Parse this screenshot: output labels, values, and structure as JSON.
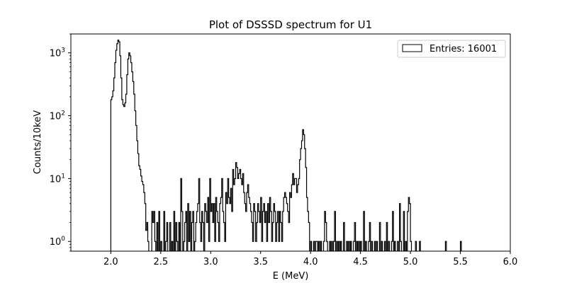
{
  "chart_data": {
    "type": "histogram-step",
    "title": "Plot of DSSSD spectrum for U1",
    "xlabel": "E (MeV)",
    "ylabel": "Counts/10keV",
    "xlim": [
      1.6,
      6.0
    ],
    "ylim": [
      0.7,
      2000
    ],
    "yscale": "log",
    "grid": false,
    "legend": {
      "placement": "top-right",
      "label": "Entries: 16001"
    },
    "xticks": [
      {
        "value": 2.0,
        "label": "2.0"
      },
      {
        "value": 2.5,
        "label": "2.5"
      },
      {
        "value": 3.0,
        "label": "3.0"
      },
      {
        "value": 3.5,
        "label": "3.5"
      },
      {
        "value": 4.0,
        "label": "4.0"
      },
      {
        "value": 4.5,
        "label": "4.5"
      },
      {
        "value": 5.0,
        "label": "5.0"
      },
      {
        "value": 5.5,
        "label": "5.5"
      },
      {
        "value": 6.0,
        "label": "6.0"
      }
    ],
    "yticks": [
      {
        "value": 1,
        "base": "10",
        "exp": "0"
      },
      {
        "value": 10,
        "base": "10",
        "exp": "1"
      },
      {
        "value": 100,
        "base": "10",
        "exp": "2"
      },
      {
        "value": 1000,
        "base": "10",
        "exp": "3"
      }
    ],
    "bin_width": 0.01,
    "bins_start": 2.0,
    "counts": [
      180,
      200,
      250,
      400,
      700,
      1100,
      1400,
      1600,
      1500,
      900,
      400,
      180,
      150,
      140,
      160,
      220,
      450,
      800,
      1000,
      900,
      700,
      500,
      350,
      220,
      120,
      70,
      40,
      25,
      16,
      14,
      11,
      9,
      8,
      6,
      4,
      1.5,
      2,
      1,
      0,
      0,
      0,
      3,
      2,
      3,
      1,
      0,
      2,
      0,
      3,
      0,
      1,
      0,
      0,
      3,
      0,
      1,
      2,
      0,
      0,
      2,
      0,
      1,
      0,
      3,
      0,
      2,
      1,
      0,
      2,
      0,
      10,
      3,
      0,
      1,
      2,
      3,
      0,
      4,
      1,
      3,
      0,
      2,
      3,
      0,
      1,
      2,
      3,
      4,
      10,
      2,
      1,
      3,
      2,
      0,
      4,
      3,
      2,
      5,
      1,
      10,
      3,
      4,
      2,
      4,
      1,
      5,
      3,
      2,
      1,
      4,
      5,
      10,
      3,
      2,
      1,
      6,
      4,
      10,
      5,
      4,
      7,
      3,
      14,
      8,
      10,
      18,
      15,
      10,
      12,
      14,
      10,
      8,
      12,
      6,
      4,
      3,
      6,
      8,
      5,
      4,
      3,
      2,
      1,
      4,
      3,
      1,
      2,
      4,
      3,
      2,
      5,
      1,
      3,
      4,
      2,
      3,
      1,
      4,
      2,
      5,
      3,
      1,
      2,
      4,
      3,
      1,
      2,
      3,
      1,
      3,
      2,
      1,
      3,
      5,
      6,
      5,
      4,
      3,
      2,
      6,
      5,
      8,
      12,
      8,
      10,
      10,
      6,
      8,
      10,
      20,
      30,
      40,
      60,
      50,
      30,
      15,
      5,
      3,
      2,
      0,
      1,
      0,
      0,
      1,
      0,
      1,
      1,
      0,
      1,
      0,
      1,
      0,
      0,
      1,
      3,
      2,
      1,
      0,
      0,
      1,
      0,
      1,
      0,
      1,
      3,
      0,
      1,
      0,
      1,
      0,
      1,
      0,
      0,
      2,
      0,
      0,
      1,
      0,
      1,
      0,
      1,
      0,
      0,
      1,
      2,
      0,
      1,
      0,
      1,
      0,
      1,
      0,
      0,
      3,
      0,
      1,
      0,
      0,
      1,
      2,
      0,
      1,
      0,
      0,
      1,
      0,
      1,
      0,
      0,
      2,
      0,
      1,
      0,
      0,
      1,
      0,
      2,
      0,
      1,
      0,
      0,
      1,
      3,
      0,
      1,
      0,
      0,
      1,
      0,
      4,
      1,
      0,
      0,
      3,
      0,
      1,
      0,
      3,
      5,
      4,
      1,
      0,
      0,
      0,
      0,
      1,
      0,
      0,
      0,
      1,
      0,
      0,
      0,
      0,
      0,
      0,
      0,
      0,
      0,
      0,
      0,
      0,
      0,
      0,
      0,
      0,
      0,
      0,
      0,
      0,
      0,
      0,
      0,
      0,
      0,
      1,
      0,
      0,
      0,
      0,
      0,
      0,
      0,
      0,
      0,
      0,
      0,
      0,
      0,
      0,
      1,
      0,
      0,
      0,
      0,
      0,
      0,
      0,
      0,
      0
    ]
  }
}
